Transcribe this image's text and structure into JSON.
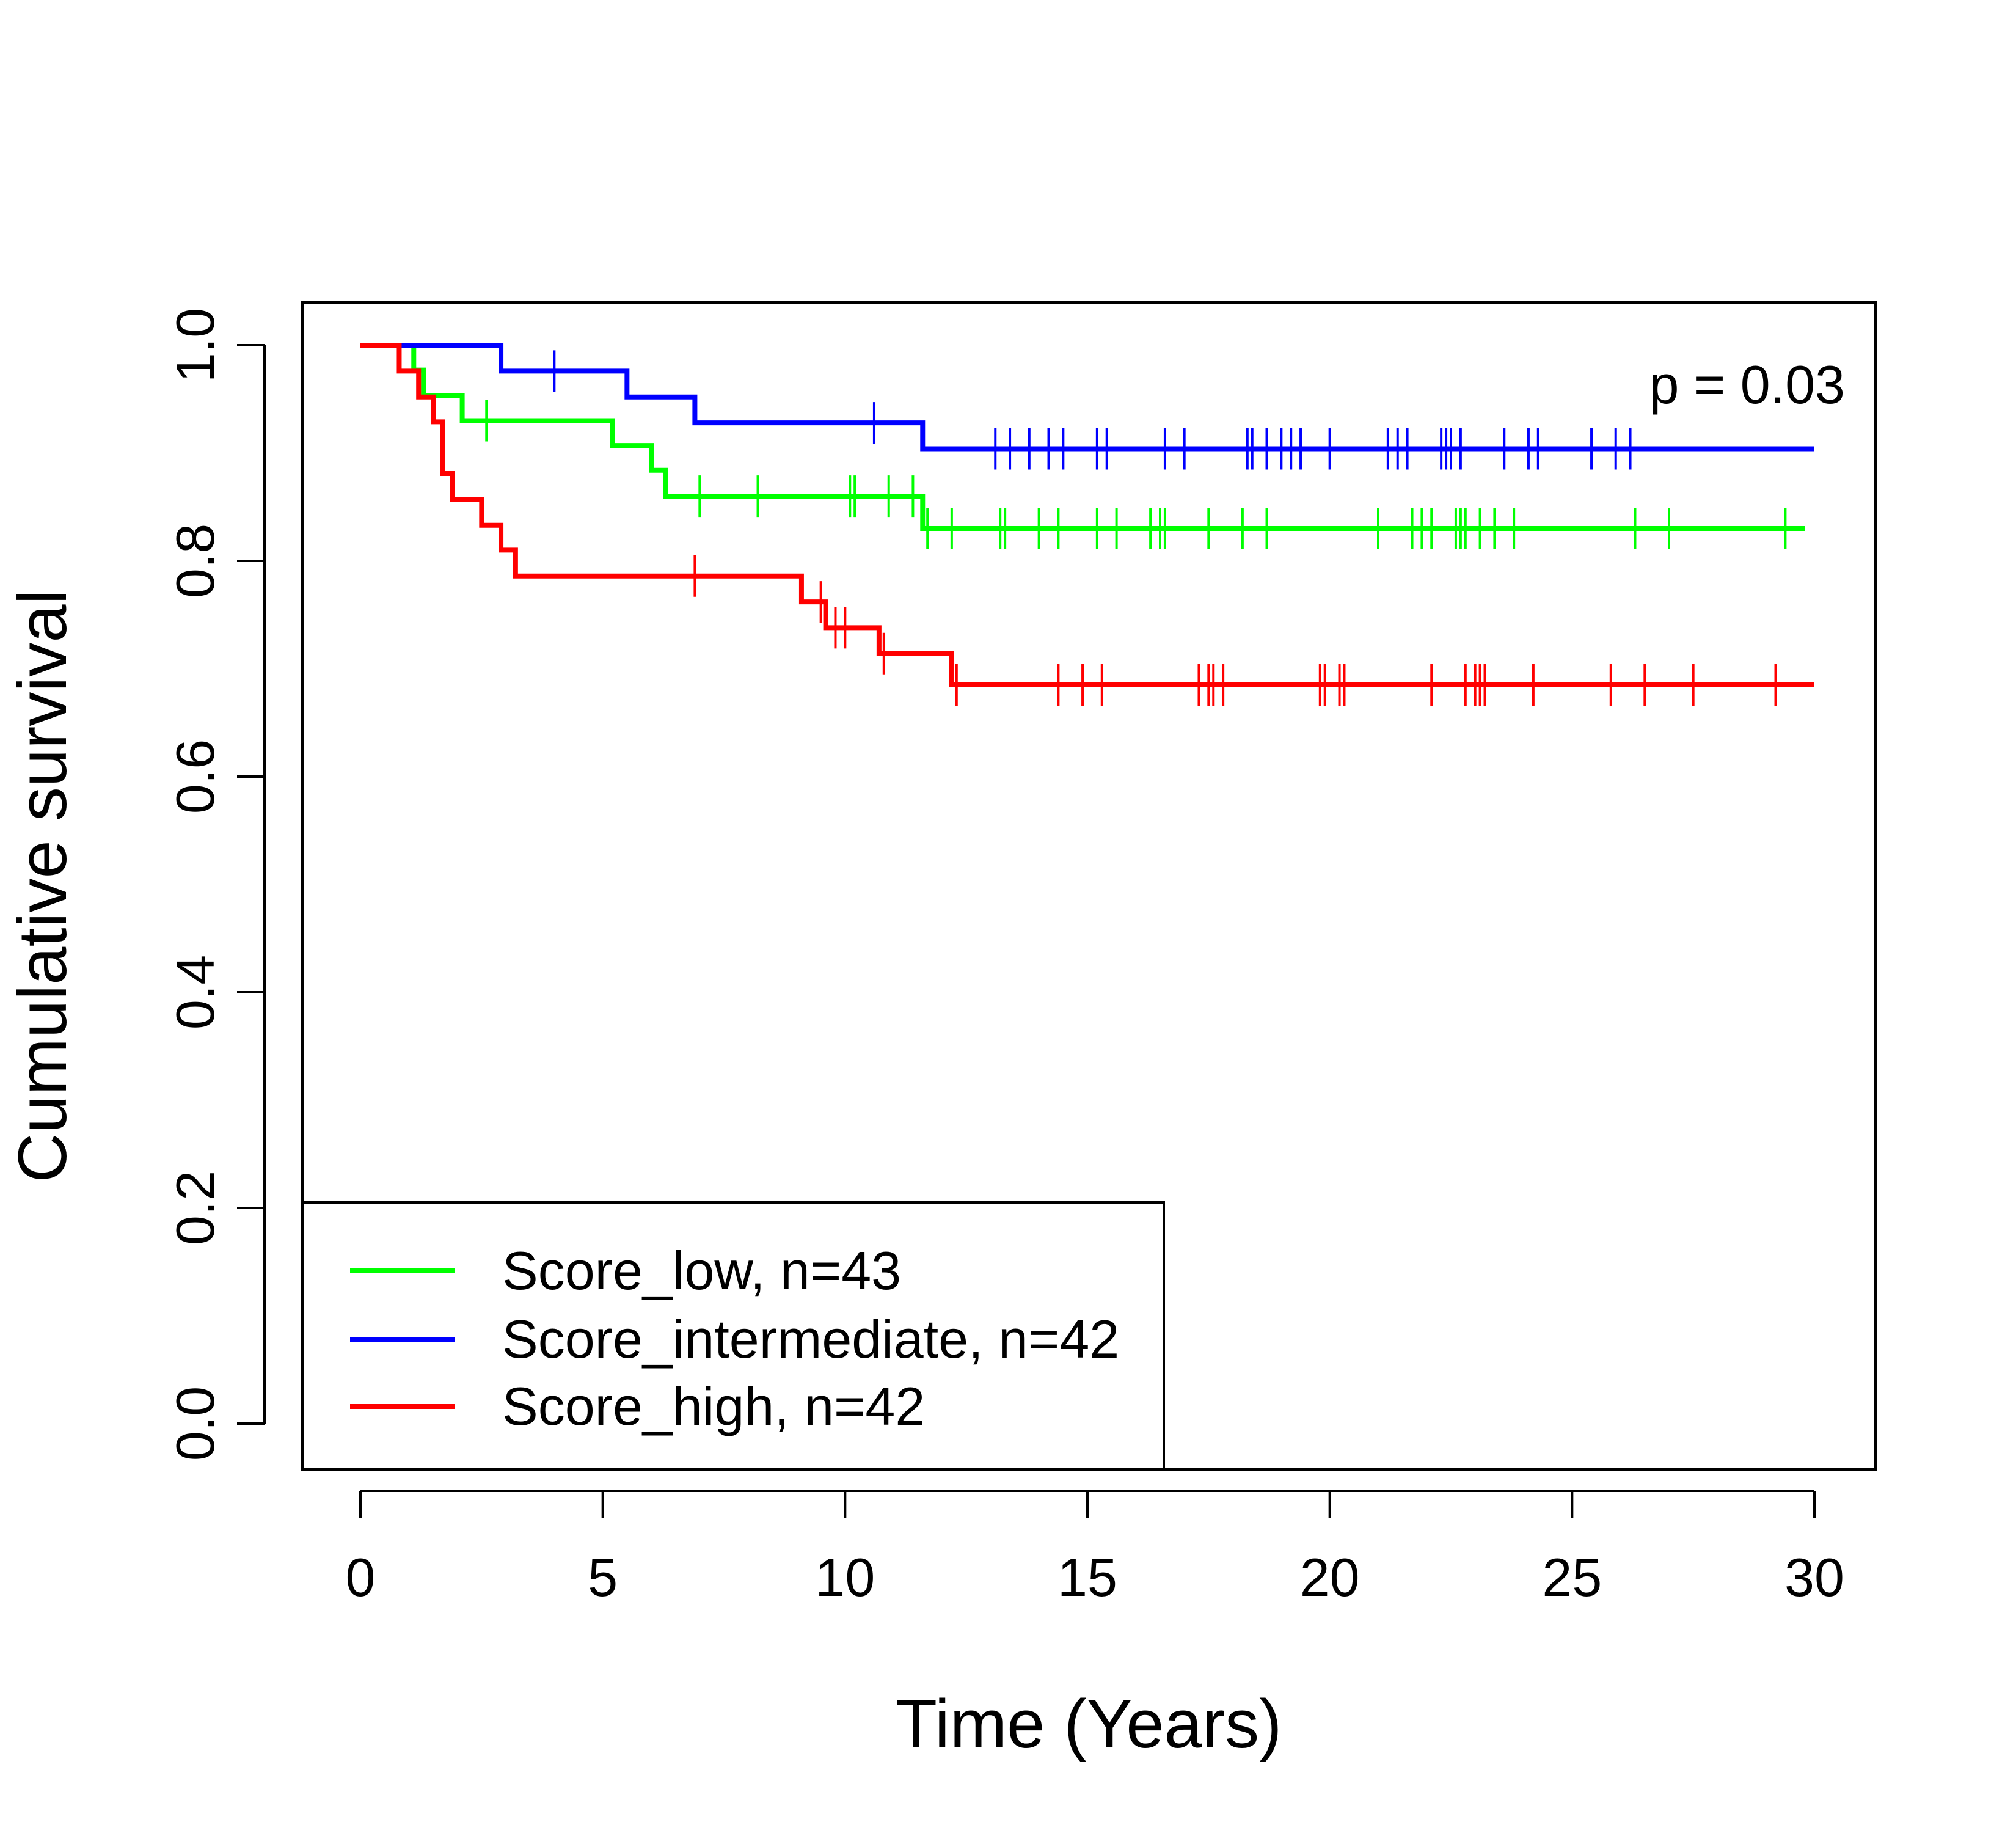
{
  "chart_data": {
    "type": "line",
    "title": "",
    "xlabel": "Time (Years)",
    "ylabel": "Cumulative survival",
    "xlim": [
      0,
      30
    ],
    "ylim": [
      0,
      1.0
    ],
    "x_ticks": [
      "0",
      "5",
      "10",
      "15",
      "20",
      "25",
      "30"
    ],
    "y_ticks": [
      "0.0",
      "0.2",
      "0.4",
      "0.6",
      "0.8",
      "1.0"
    ],
    "grid": false,
    "legend_position": "bottom-left",
    "annotation": "p = 0.03",
    "series": [
      {
        "name": "Score_low, n=43",
        "color": "#00ff00",
        "steps": [
          [
            0,
            1.0
          ],
          [
            1.1,
            0.977
          ],
          [
            1.3,
            0.953
          ],
          [
            2.1,
            0.93
          ],
          [
            5.2,
            0.907
          ],
          [
            6.0,
            0.884
          ],
          [
            6.3,
            0.86
          ],
          [
            11.6,
            0.83
          ],
          [
            29.8,
            0.83
          ]
        ],
        "censored": [
          2.6,
          7.0,
          8.2,
          10.1,
          10.2,
          10.9,
          11.4,
          11.7,
          12.2,
          13.2,
          13.3,
          14.0,
          14.4,
          15.2,
          15.6,
          16.3,
          16.5,
          16.6,
          17.5,
          18.2,
          18.7,
          21.0,
          21.7,
          21.9,
          22.1,
          22.6,
          22.7,
          22.8,
          23.1,
          23.4,
          23.8,
          26.3,
          27.0,
          29.4
        ]
      },
      {
        "name": "Score_intermediate, n=42",
        "color": "#0000ff",
        "steps": [
          [
            0,
            1.0
          ],
          [
            2.9,
            0.976
          ],
          [
            5.5,
            0.952
          ],
          [
            6.9,
            0.928
          ],
          [
            11.6,
            0.904
          ],
          [
            30.0,
            0.904
          ]
        ],
        "censored": [
          4.0,
          10.6,
          13.1,
          13.4,
          13.8,
          14.2,
          14.5,
          15.2,
          15.4,
          16.6,
          17.0,
          18.3,
          18.4,
          18.7,
          19.0,
          19.2,
          19.4,
          20.0,
          21.2,
          21.4,
          21.6,
          22.3,
          22.4,
          22.5,
          22.7,
          23.6,
          24.1,
          24.3,
          25.4,
          25.9,
          26.2
        ]
      },
      {
        "name": "Score_high, n=42",
        "color": "#ff0000",
        "steps": [
          [
            0,
            1.0
          ],
          [
            0.8,
            0.976
          ],
          [
            1.2,
            0.952
          ],
          [
            1.5,
            0.929
          ],
          [
            1.7,
            0.881
          ],
          [
            1.9,
            0.857
          ],
          [
            2.5,
            0.833
          ],
          [
            2.9,
            0.81
          ],
          [
            3.2,
            0.786
          ],
          [
            9.1,
            0.762
          ],
          [
            9.6,
            0.738
          ],
          [
            10.7,
            0.714
          ],
          [
            12.2,
            0.685
          ],
          [
            30.0,
            0.685
          ]
        ],
        "censored": [
          6.9,
          9.5,
          9.8,
          10.0,
          10.8,
          12.3,
          14.4,
          14.9,
          15.3,
          17.3,
          17.5,
          17.6,
          17.8,
          19.8,
          19.9,
          20.2,
          20.3,
          22.1,
          22.8,
          23.0,
          23.1,
          23.2,
          24.2,
          25.8,
          26.5,
          27.5,
          29.2
        ]
      }
    ]
  }
}
